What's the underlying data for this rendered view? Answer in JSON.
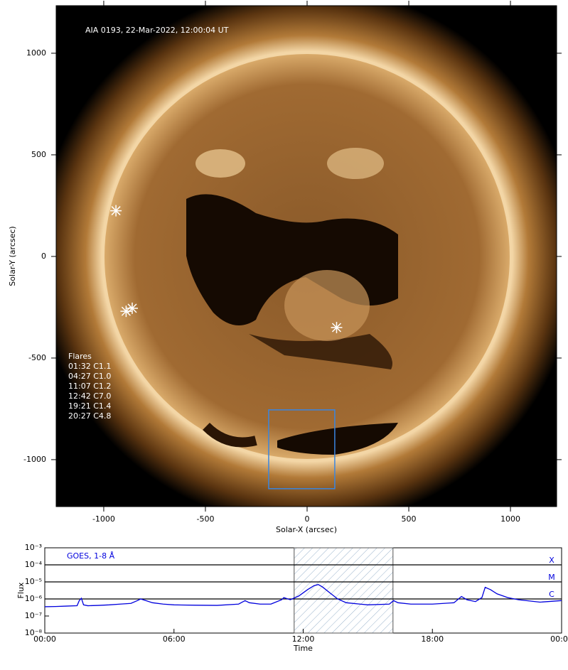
{
  "chart_data": [
    {
      "type": "scatter",
      "title": "AIA 0193, 22-Mar-2022, 12:00:04 UT",
      "x_label": "Solar-X (arcsec)",
      "y_label": "Solar-Y (arcsec)",
      "xlim": [
        -1234,
        1227
      ],
      "ylim": [
        -1231,
        1234
      ],
      "xticks": [
        -1000,
        -500,
        0,
        500,
        1000
      ],
      "yticks": [
        -1000,
        -500,
        0,
        500,
        1000
      ],
      "x": [
        -940,
        -860,
        -890,
        145
      ],
      "y": [
        225,
        -255,
        -270,
        -350
      ],
      "color": "#ffffff",
      "annotations": [
        "Flares",
        "01:32 C1.1",
        "04:27 C1.0",
        "11:07 C1.2",
        "12:42 C7.0",
        "19:21 C1.4",
        "20:27 C4.8"
      ],
      "box": {
        "x": [
          -189,
          136
        ],
        "y": [
          -1143,
          -755
        ],
        "color": "#3a86e0"
      }
    },
    {
      "type": "line",
      "title": "GOES, 1-8 Å",
      "x_label": "Time",
      "y_label": "Flux",
      "xlim": [
        0,
        24
      ],
      "ylim": [
        1e-08,
        0.001
      ],
      "yscale": "log",
      "xticks": [
        {
          "value": 0,
          "label": "00:00"
        },
        {
          "value": 6,
          "label": "06:00"
        },
        {
          "value": 12,
          "label": "12:00"
        },
        {
          "value": 18,
          "label": "18:00"
        },
        {
          "value": 24,
          "label": "00:00"
        }
      ],
      "yticks": [
        {
          "value": 1e-08,
          "label": "10⁻⁸"
        },
        {
          "value": 1e-07,
          "label": "10⁻⁷"
        },
        {
          "value": 1e-06,
          "label": "10⁻⁶"
        },
        {
          "value": 1e-05,
          "label": "10⁻⁵"
        },
        {
          "value": 0.0001,
          "label": "10⁻⁴"
        },
        {
          "value": 0.001,
          "label": "10⁻³"
        }
      ],
      "levels": [
        {
          "value": 0.0001,
          "label": "X"
        },
        {
          "value": 1e-05,
          "label": "M"
        },
        {
          "value": 1e-06,
          "label": "C"
        }
      ],
      "highlight": [
        11.58,
        16.17
      ],
      "series": [
        {
          "color": "#0000dd",
          "x": [
            0,
            0.5,
            1,
            1.5,
            1.6,
            1.7,
            1.8,
            2,
            2.5,
            3,
            3.5,
            4,
            4.3,
            4.45,
            4.7,
            5,
            5.5,
            6,
            7,
            8,
            9,
            9.3,
            9.5,
            10,
            10.5,
            11,
            11.1,
            11.4,
            11.8,
            12.2,
            12.5,
            12.7,
            12.9,
            13.2,
            13.6,
            14,
            15,
            16,
            16.2,
            16.4,
            17,
            18,
            19,
            19.35,
            19.6,
            20,
            20.3,
            20.45,
            20.7,
            21,
            21.5,
            22,
            23,
            24
          ],
          "values": [
            3.5e-07,
            3.6e-07,
            3.8e-07,
            4e-07,
            8e-07,
            1.1e-06,
            4.5e-07,
            4e-07,
            4.2e-07,
            4.5e-07,
            5e-07,
            5.5e-07,
            8e-07,
            1e-06,
            8e-07,
            6e-07,
            5e-07,
            4.5e-07,
            4.3e-07,
            4.2e-07,
            5e-07,
            8e-07,
            6e-07,
            5e-07,
            5e-07,
            9e-07,
            1.2e-06,
            9e-07,
            1.5e-06,
            3.5e-06,
            6e-06,
            7e-06,
            5e-06,
            2.5e-06,
            1e-06,
            6e-07,
            4.5e-07,
            5e-07,
            8e-07,
            6e-07,
            5e-07,
            5e-07,
            6e-07,
            1.4e-06,
            9e-07,
            7e-07,
            1.2e-06,
            4.8e-06,
            3.5e-06,
            2e-06,
            1.2e-06,
            9e-07,
            6.5e-07,
            8e-07
          ]
        }
      ]
    }
  ]
}
